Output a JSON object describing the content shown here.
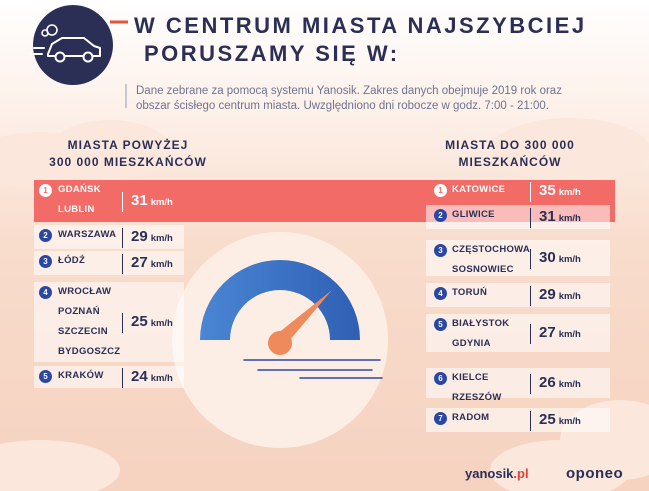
{
  "title": {
    "line1": "W CENTRUM MIASTA NAJSZYBCIEJ",
    "line2": "PORUSZAMY SIĘ W:"
  },
  "subtitle": "Dane zebrane za pomocą systemu Yanosik. Zakres danych obejmuje 2019 rok oraz obszar ścisłego centrum miasta. Uwzględniono dni robocze w godz. 7:00 - 21:00.",
  "left_header": {
    "line1": "MIASTA POWYŻEJ",
    "line2": "300 000 MIESZKAŃCÓW"
  },
  "right_header": {
    "line1": "MIASTA DO 300 000",
    "line2": "MIESZKAŃCÓW"
  },
  "unit": "km/h",
  "chart_data": {
    "type": "table",
    "title": "W centrum miasta najszybciej poruszamy się w:",
    "groups": [
      {
        "name": "Miasta powyżej 300 000 mieszkańców",
        "rows": [
          {
            "rank": "1",
            "cities": [
              "GDAŃSK",
              "LUBLIN"
            ],
            "speed": 31,
            "unit": "km/h"
          },
          {
            "rank": "2",
            "cities": [
              "WARSZAWA"
            ],
            "speed": 29,
            "unit": "km/h"
          },
          {
            "rank": "3",
            "cities": [
              "ŁÓDŹ"
            ],
            "speed": 27,
            "unit": "km/h"
          },
          {
            "rank": "4",
            "cities": [
              "WROCŁAW",
              "POZNAŃ",
              "SZCZECIN",
              "BYDGOSZCZ"
            ],
            "speed": 25,
            "unit": "km/h"
          },
          {
            "rank": "5",
            "cities": [
              "KRAKÓW"
            ],
            "speed": 24,
            "unit": "km/h"
          }
        ]
      },
      {
        "name": "Miasta do 300 000 mieszkańców",
        "rows": [
          {
            "rank": "1",
            "cities": [
              "KATOWICE"
            ],
            "speed": 35,
            "unit": "km/h"
          },
          {
            "rank": "2",
            "cities": [
              "GLIWICE"
            ],
            "speed": 31,
            "unit": "km/h"
          },
          {
            "rank": "3",
            "cities": [
              "CZĘSTOCHOWA",
              "SOSNOWIEC"
            ],
            "speed": 30,
            "unit": "km/h"
          },
          {
            "rank": "4",
            "cities": [
              "TORUŃ"
            ],
            "speed": 29,
            "unit": "km/h"
          },
          {
            "rank": "5",
            "cities": [
              "BIAŁYSTOK",
              "GDYNIA"
            ],
            "speed": 27,
            "unit": "km/h"
          },
          {
            "rank": "6",
            "cities": [
              "KIELCE",
              "RZESZÓW"
            ],
            "speed": 26,
            "unit": "km/h"
          },
          {
            "rank": "7",
            "cities": [
              "RADOM"
            ],
            "speed": 25,
            "unit": "km/h"
          }
        ]
      }
    ]
  },
  "logos": {
    "yanosik_main": "yanosik",
    "yanosik_tld": ".pl",
    "oponeo": "oponeo"
  },
  "colors": {
    "navy": "#2b2f55",
    "highlight": "#f26b67",
    "gauge_blue": "#4a7fd0",
    "needle": "#ef8a5c",
    "background": "#f7dccd"
  }
}
